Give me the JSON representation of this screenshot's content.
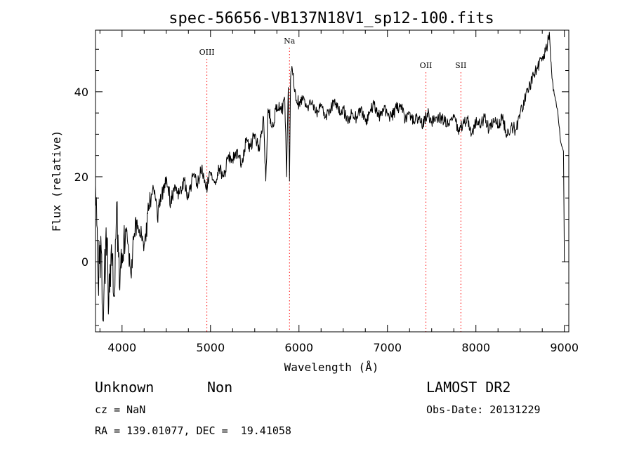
{
  "footer": {
    "obj_class": "Unknown",
    "obj_subclass": "Non",
    "survey": "LAMOST DR2",
    "cz": "cz = NaN",
    "obs_date": "Obs-Date: 20131229",
    "coords": "RA = 139.01077, DEC =  19.41058"
  },
  "chart_data": {
    "type": "line",
    "title": "spec-56656-VB137N18V1_sp12-100.fits",
    "xlabel": "Wavelength (Å)",
    "ylabel": "Flux (relative)",
    "xlim": [
      3700,
      9050
    ],
    "ylim": [
      -16.5,
      54.5
    ],
    "x_ticks": [
      4000,
      5000,
      6000,
      7000,
      8000,
      9000
    ],
    "y_ticks": [
      0,
      20,
      40
    ],
    "grid": false,
    "series": [
      {
        "line_color": "#000000",
        "x": [
          3700,
          3730,
          3760,
          3790,
          3820,
          3850,
          3880,
          3910,
          3940,
          3970,
          4000,
          4050,
          4100,
          4150,
          4200,
          4250,
          4300,
          4350,
          4400,
          4450,
          4500,
          4550,
          4600,
          4650,
          4700,
          4750,
          4800,
          4850,
          4900,
          4950,
          5000,
          5050,
          5100,
          5150,
          5200,
          5250,
          5300,
          5350,
          5400,
          5450,
          5500,
          5550,
          5600,
          5625,
          5650,
          5700,
          5750,
          5800,
          5840,
          5860,
          5880,
          5893,
          5905,
          5920,
          5950,
          6000,
          6050,
          6100,
          6150,
          6200,
          6250,
          6300,
          6350,
          6400,
          6450,
          6500,
          6550,
          6600,
          6650,
          6700,
          6750,
          6800,
          6850,
          6900,
          6950,
          7000,
          7050,
          7100,
          7150,
          7200,
          7250,
          7300,
          7350,
          7400,
          7450,
          7500,
          7550,
          7600,
          7650,
          7700,
          7750,
          7800,
          7850,
          7900,
          7950,
          8000,
          8050,
          8100,
          8150,
          8200,
          8250,
          8300,
          8350,
          8400,
          8450,
          8500,
          8550,
          8600,
          8650,
          8700,
          8750,
          8800,
          8830,
          8850,
          8870,
          8900,
          8920,
          8940,
          8960,
          8975,
          8990,
          9000,
          9010
        ],
        "y": [
          18,
          -5,
          6,
          -14,
          8,
          -10,
          4,
          -8,
          14,
          -6,
          2,
          8,
          -3,
          10,
          6,
          4,
          12,
          18,
          10,
          16,
          20,
          14,
          18,
          16,
          19,
          15,
          20,
          18,
          22,
          17,
          21,
          19,
          22,
          20,
          25,
          24,
          26,
          23,
          28,
          27,
          30,
          26,
          34,
          19,
          36,
          32,
          37,
          35,
          38,
          20,
          41,
          19,
          43,
          46,
          40,
          37,
          39,
          36,
          38,
          35,
          37,
          34,
          36,
          38,
          35,
          36,
          33,
          35,
          34,
          36,
          33,
          35,
          37,
          34,
          36,
          35,
          34,
          36,
          37,
          33,
          35,
          33,
          34,
          32,
          35,
          33,
          34,
          34,
          33,
          32,
          34,
          31,
          32,
          34,
          30,
          33,
          32,
          34,
          31,
          33,
          32,
          34,
          30,
          32,
          31,
          35,
          38,
          41,
          44,
          46,
          48,
          50,
          54,
          47,
          42,
          38,
          36,
          32,
          28,
          27,
          26,
          0,
          0
        ],
        "noise": [
          3.5,
          8,
          8,
          7,
          7,
          6,
          6,
          6,
          5,
          5,
          5,
          3,
          3,
          3,
          3,
          3,
          3,
          2.5,
          2.5,
          2.2,
          2,
          2,
          2,
          2,
          1.8,
          1.8,
          1.8,
          1.8,
          1.6,
          1.6,
          1.5,
          1.5,
          1.5,
          1.5,
          1.5,
          1.5,
          1.5,
          1.5,
          1.5,
          1.5,
          1.8,
          1.8,
          1.8,
          1.8,
          1.8,
          1.8,
          1.8,
          1.8,
          1.5,
          1.5,
          1.5,
          1.5,
          1.5,
          1.5,
          1.5,
          1.5,
          1.5,
          1.5,
          1.5,
          1.5,
          1.5,
          1.5,
          1.5,
          1.5,
          1.5,
          1.5,
          1.5,
          1.5,
          1.5,
          1.5,
          1.5,
          1.5,
          1.5,
          1.5,
          1.5,
          1.5,
          1.5,
          1.5,
          1.5,
          1.5,
          1.5,
          1.5,
          1.5,
          1.5,
          1.5,
          1.5,
          1.5,
          1.5,
          1.5,
          1.5,
          1.5,
          1.5,
          1.5,
          1.5,
          1.5,
          1.5,
          1.5,
          1.5,
          1.5,
          1.5,
          1.5,
          1.5,
          1.5,
          1.5,
          1.5,
          1.5,
          1.5,
          1.5,
          1.5,
          1.5,
          1.5,
          1.5,
          1.5,
          1.5,
          1.2,
          1,
          0.8,
          0.6,
          0.4,
          0,
          0,
          0,
          0
        ]
      }
    ],
    "annotations": [
      {
        "label": "OIII",
        "x": 4959,
        "color": "#ff0000",
        "label_row": 0
      },
      {
        "label": "Na",
        "x": 5893,
        "color": "#ff0000",
        "label_row": -1
      },
      {
        "label": "OII",
        "x": 7435,
        "color": "#ff0000",
        "label_row": 1
      },
      {
        "label": "SII",
        "x": 7830,
        "color": "#ff0000",
        "label_row": 1
      }
    ]
  }
}
